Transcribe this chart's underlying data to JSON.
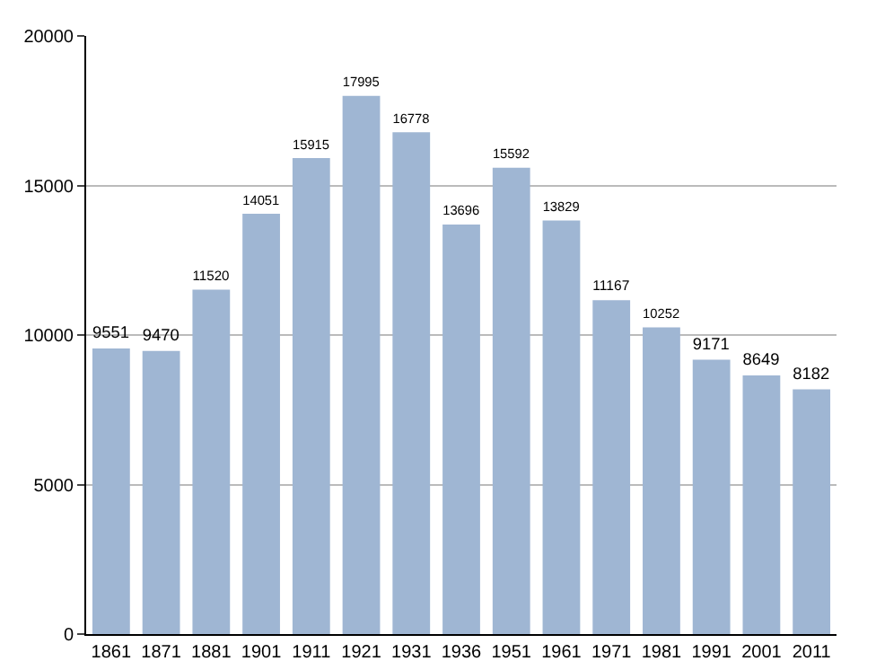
{
  "chart_data": {
    "type": "bar",
    "categories": [
      "1861",
      "1871",
      "1881",
      "1901",
      "1911",
      "1921",
      "1931",
      "1936",
      "1951",
      "1961",
      "1971",
      "1981",
      "1991",
      "2001",
      "2011"
    ],
    "values": [
      9551,
      9470,
      11520,
      14051,
      15915,
      17995,
      16778,
      13696,
      15592,
      13829,
      11167,
      10252,
      9171,
      8649,
      8182
    ],
    "color": "#9fb6d3",
    "ylim": [
      0,
      20000
    ],
    "yticks": [
      0,
      5000,
      10000,
      15000,
      20000
    ],
    "grid": "y",
    "data_labels": true
  }
}
